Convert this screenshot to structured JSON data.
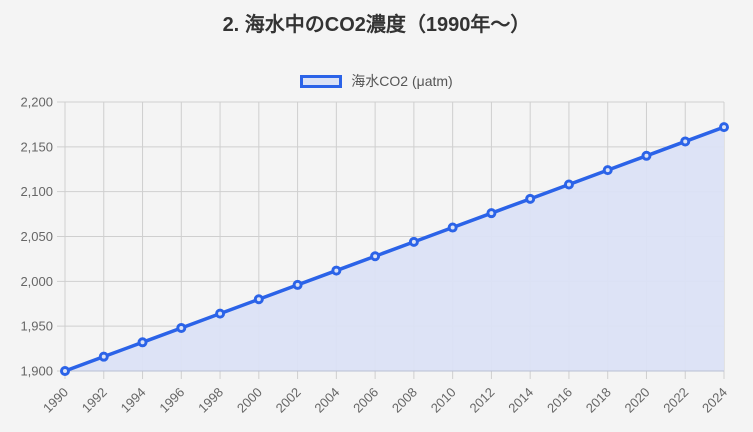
{
  "title": "2. 海水中のCO2濃度（1990年〜）",
  "legend": {
    "label": "海水CO2 (μatm)",
    "line_color": "#2b63e8",
    "fill_color": "#dbe2f5"
  },
  "chart_data": {
    "type": "area",
    "title": "2. 海水中のCO2濃度（1990年〜）",
    "xlabel": "",
    "ylabel": "",
    "categories": [
      "1990",
      "1992",
      "1994",
      "1996",
      "1998",
      "2000",
      "2002",
      "2004",
      "2006",
      "2008",
      "2010",
      "2012",
      "2014",
      "2016",
      "2018",
      "2020",
      "2022",
      "2024"
    ],
    "series": [
      {
        "name": "海水CO2 (μatm)",
        "values": [
          1900,
          1916,
          1932,
          1948,
          1964,
          1980,
          1996,
          2012,
          2028,
          2044,
          2060,
          2076,
          2092,
          2108,
          2124,
          2140,
          2156,
          2172
        ],
        "color": "#2b63e8",
        "fill": "#dbe2f5"
      }
    ],
    "ylim": [
      1900,
      2200
    ],
    "yticks": [
      1900,
      1950,
      2000,
      2050,
      2100,
      2150,
      2200
    ],
    "ytick_labels": [
      "1,900",
      "1,950",
      "2,000",
      "2,050",
      "2,100",
      "2,150",
      "2,200"
    ],
    "grid": true,
    "legend_position": "top"
  }
}
